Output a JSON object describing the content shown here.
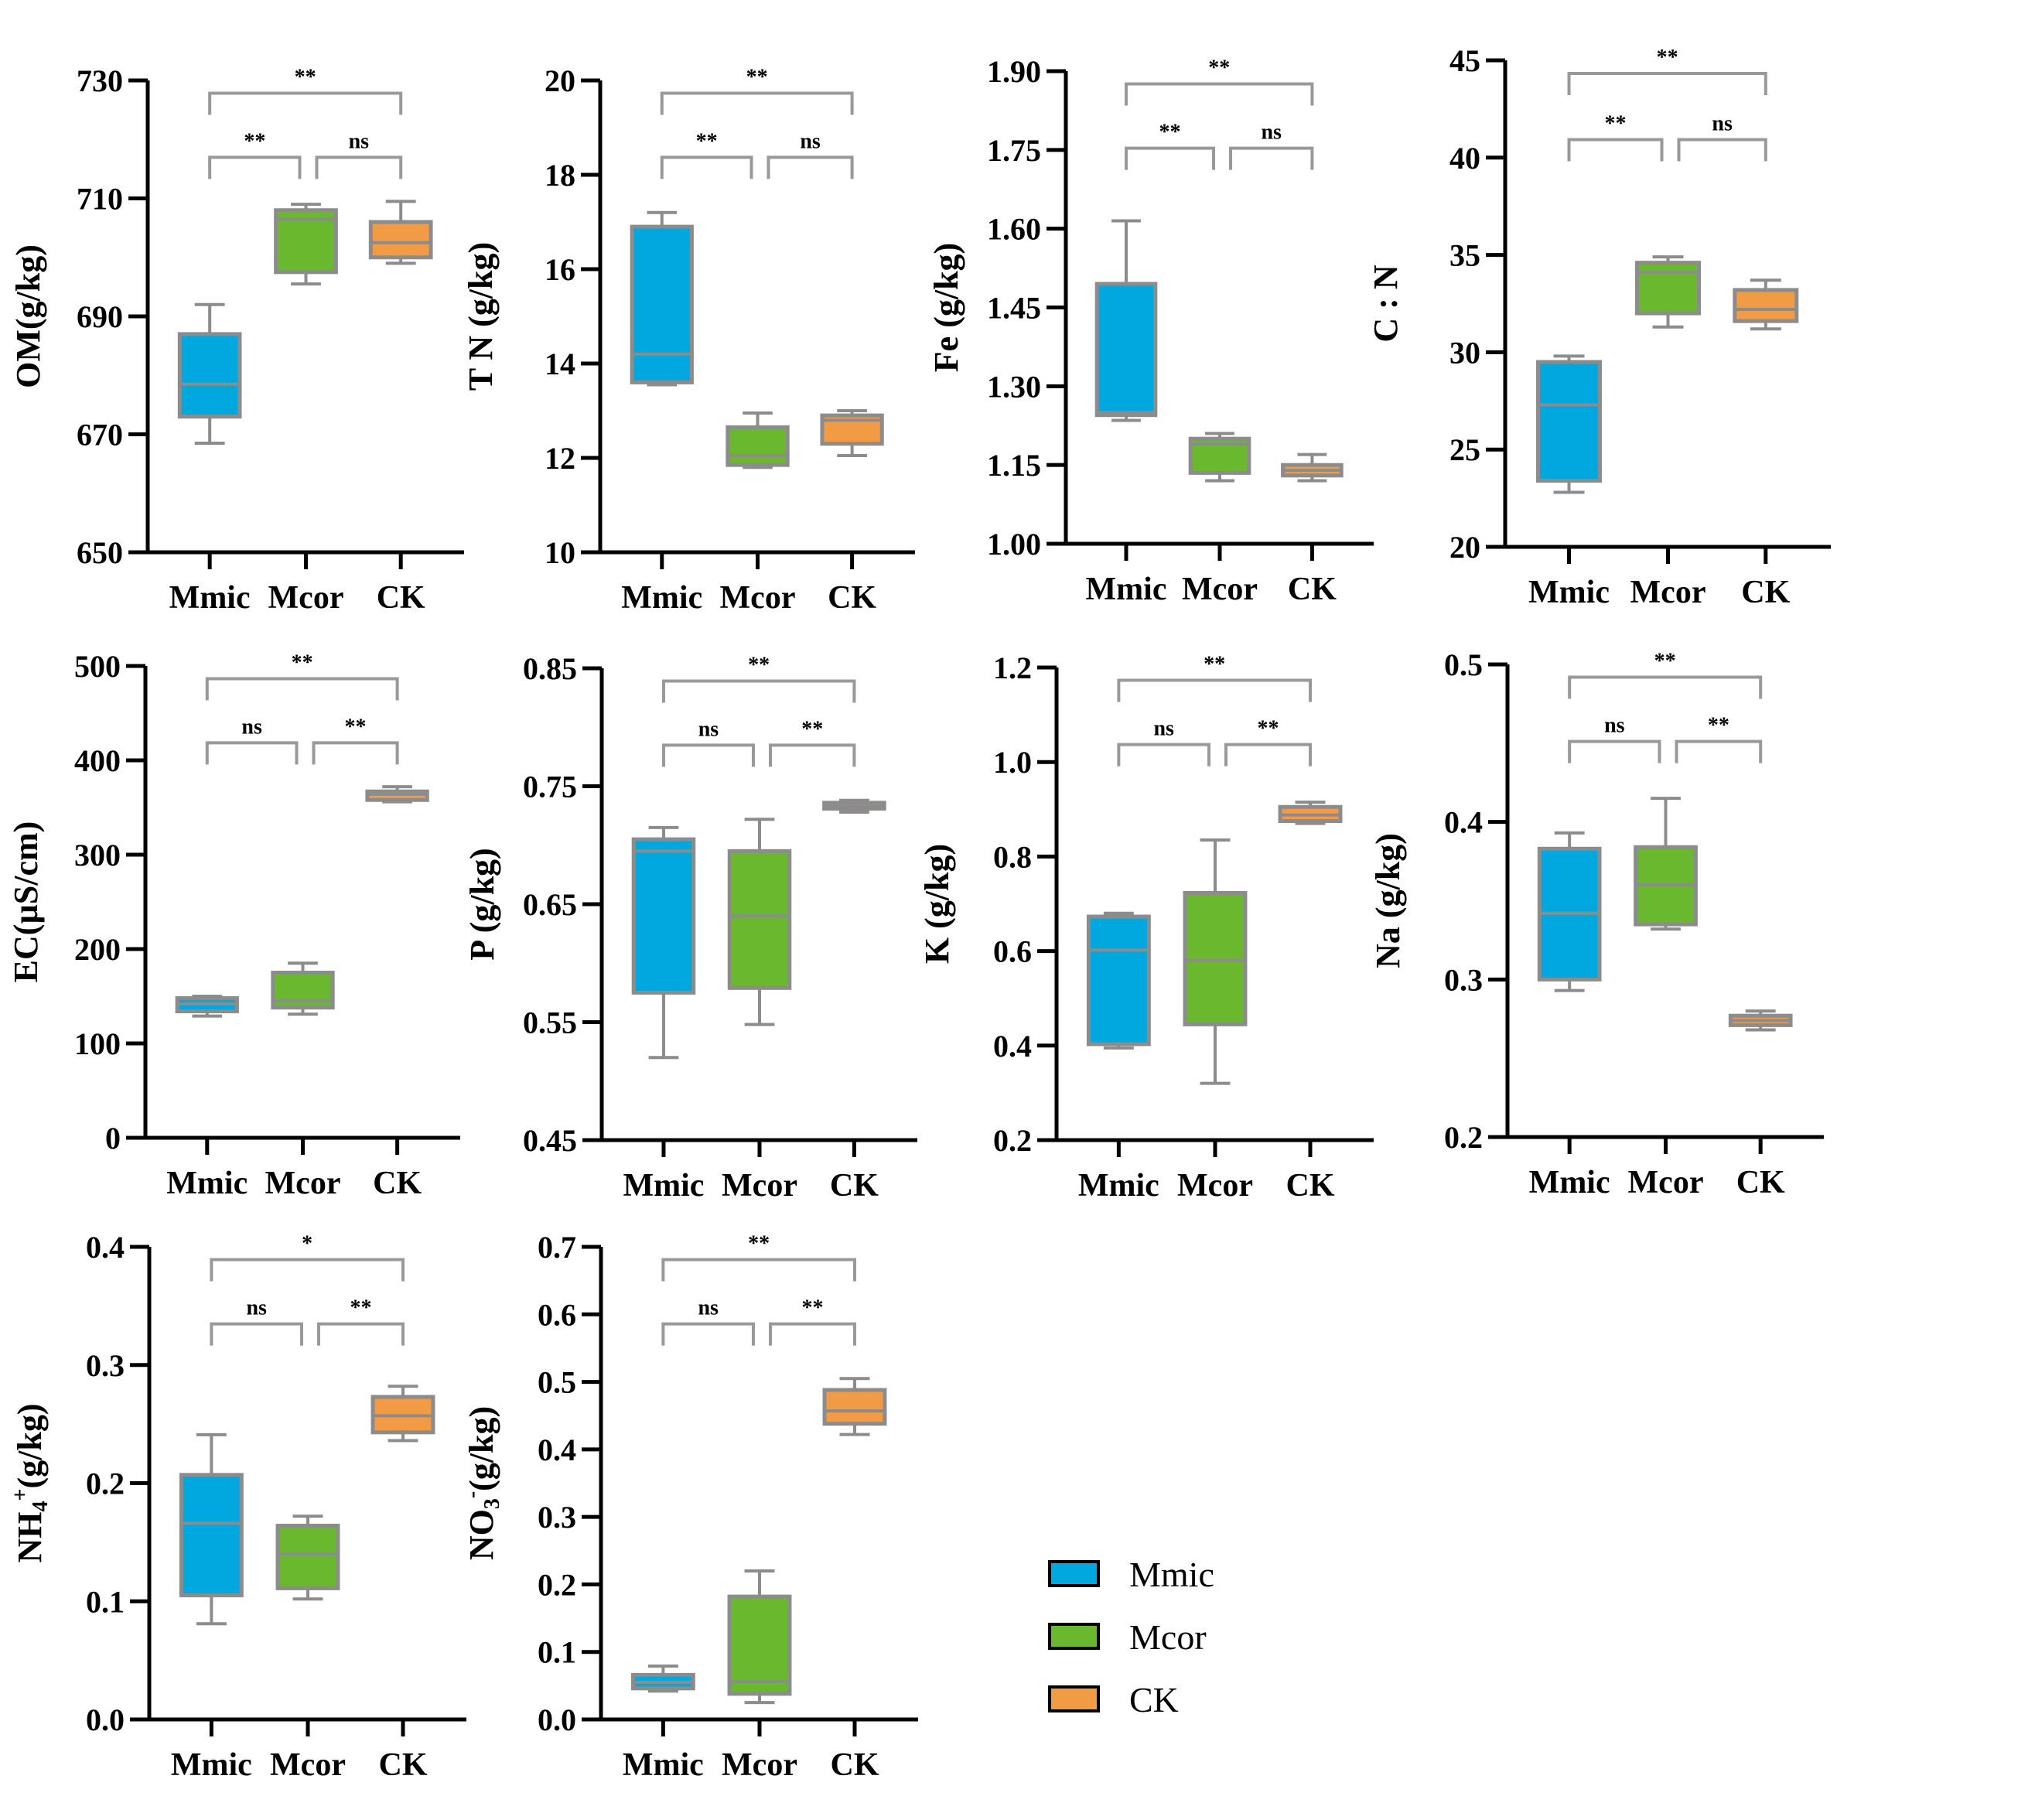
{
  "chart_data": {
    "type": "boxplot",
    "groups": [
      "Mmic",
      "Mcor",
      "CK"
    ],
    "group_colors": {
      "Mmic": "#00a8e0",
      "Mcor": "#6ab82e",
      "CK": "#f19b45"
    },
    "box_line_color": "#8c8c8c",
    "legend": {
      "placement": "bottom-right",
      "entries": [
        {
          "label": "Mmic",
          "color": "#00a8e0"
        },
        {
          "label": "Mcor",
          "color": "#6ab82e"
        },
        {
          "label": "CK",
          "color": "#f19b45"
        }
      ]
    },
    "panels": [
      {
        "id": "OM",
        "ylabel": "OM(g/kg)",
        "ylim": [
          650,
          730
        ],
        "ticks": [
          "650",
          "670",
          "690",
          "710",
          "730"
        ],
        "boxes": [
          {
            "group": "Mmic",
            "min": 668.5,
            "q1": 673,
            "median": 678.5,
            "q3": 687,
            "max": 692
          },
          {
            "group": "Mcor",
            "min": 695.5,
            "q1": 697.5,
            "median": 706.5,
            "q3": 708,
            "max": 709
          },
          {
            "group": "CK",
            "min": 699,
            "q1": 700,
            "median": 702.5,
            "q3": 706,
            "max": 709.5
          }
        ],
        "significance": [
          {
            "pair": [
              "Mmic",
              "CK"
            ],
            "label": "**",
            "level": 2
          },
          {
            "pair": [
              "Mmic",
              "Mcor"
            ],
            "label": "**",
            "level": 1
          },
          {
            "pair": [
              "Mcor",
              "CK"
            ],
            "label": "ns",
            "level": 1
          }
        ]
      },
      {
        "id": "TN",
        "ylabel": "T N (g/kg)",
        "ylim": [
          10,
          20
        ],
        "ticks": [
          "10",
          "12",
          "14",
          "16",
          "18",
          "20"
        ],
        "boxes": [
          {
            "group": "Mmic",
            "min": 13.55,
            "q1": 13.6,
            "median": 14.2,
            "q3": 16.9,
            "max": 17.2
          },
          {
            "group": "Mcor",
            "min": 11.8,
            "q1": 11.85,
            "median": 12.05,
            "q3": 12.65,
            "max": 12.95
          },
          {
            "group": "CK",
            "min": 12.05,
            "q1": 12.3,
            "median": 12.8,
            "q3": 12.9,
            "max": 13.0
          }
        ],
        "significance": [
          {
            "pair": [
              "Mmic",
              "CK"
            ],
            "label": "**",
            "level": 2
          },
          {
            "pair": [
              "Mmic",
              "Mcor"
            ],
            "label": "**",
            "level": 1
          },
          {
            "pair": [
              "Mcor",
              "CK"
            ],
            "label": "ns",
            "level": 1
          }
        ]
      },
      {
        "id": "Fe",
        "ylabel": "Fe (g/kg)",
        "ylim": [
          1.0,
          1.9
        ],
        "ticks": [
          "1.00",
          "1.15",
          "1.30",
          "1.45",
          "1.60",
          "1.75",
          "1.90"
        ],
        "boxes": [
          {
            "group": "Mmic",
            "min": 1.235,
            "q1": 1.245,
            "median": 1.25,
            "q3": 1.495,
            "max": 1.615
          },
          {
            "group": "Mcor",
            "min": 1.12,
            "q1": 1.135,
            "median": 1.19,
            "q3": 1.2,
            "max": 1.21
          },
          {
            "group": "CK",
            "min": 1.12,
            "q1": 1.13,
            "median": 1.14,
            "q3": 1.15,
            "max": 1.17
          }
        ],
        "significance": [
          {
            "pair": [
              "Mmic",
              "CK"
            ],
            "label": "**",
            "level": 2
          },
          {
            "pair": [
              "Mmic",
              "Mcor"
            ],
            "label": "**",
            "level": 1
          },
          {
            "pair": [
              "Mcor",
              "CK"
            ],
            "label": "ns",
            "level": 1
          }
        ]
      },
      {
        "id": "CN",
        "ylabel": "C : N",
        "ylim": [
          20,
          45
        ],
        "ticks": [
          "20",
          "25",
          "30",
          "35",
          "40",
          "45"
        ],
        "boxes": [
          {
            "group": "Mmic",
            "min": 22.8,
            "q1": 23.4,
            "median": 27.3,
            "q3": 29.5,
            "max": 29.8
          },
          {
            "group": "Mcor",
            "min": 31.3,
            "q1": 32.0,
            "median": 34.1,
            "q3": 34.6,
            "max": 34.9
          },
          {
            "group": "CK",
            "min": 31.2,
            "q1": 31.6,
            "median": 32.2,
            "q3": 33.2,
            "max": 33.7
          }
        ],
        "significance": [
          {
            "pair": [
              "Mmic",
              "CK"
            ],
            "label": "**",
            "level": 2
          },
          {
            "pair": [
              "Mmic",
              "Mcor"
            ],
            "label": "**",
            "level": 1
          },
          {
            "pair": [
              "Mcor",
              "CK"
            ],
            "label": "ns",
            "level": 1
          }
        ]
      },
      {
        "id": "EC",
        "ylabel": "EC(µS/cm)",
        "ylim": [
          0,
          500
        ],
        "ticks": [
          "0",
          "100",
          "200",
          "300",
          "400",
          "500"
        ],
        "boxes": [
          {
            "group": "Mmic",
            "min": 129,
            "q1": 134,
            "median": 142,
            "q3": 148,
            "max": 150
          },
          {
            "group": "Mcor",
            "min": 131,
            "q1": 138,
            "median": 145,
            "q3": 175,
            "max": 185
          },
          {
            "group": "CK",
            "min": 356,
            "q1": 358,
            "median": 364,
            "q3": 367,
            "max": 372
          }
        ],
        "significance": [
          {
            "pair": [
              "Mmic",
              "CK"
            ],
            "label": "**",
            "level": 2
          },
          {
            "pair": [
              "Mmic",
              "Mcor"
            ],
            "label": "ns",
            "level": 1
          },
          {
            "pair": [
              "Mcor",
              "CK"
            ],
            "label": "**",
            "level": 1
          }
        ]
      },
      {
        "id": "P",
        "ylabel": "P (g/kg)",
        "ylim": [
          0.45,
          0.85
        ],
        "ticks": [
          "0.45",
          "0.55",
          "0.65",
          "0.75",
          "0.85"
        ],
        "boxes": [
          {
            "group": "Mmic",
            "min": 0.52,
            "q1": 0.575,
            "median": 0.695,
            "q3": 0.705,
            "max": 0.715
          },
          {
            "group": "Mcor",
            "min": 0.548,
            "q1": 0.579,
            "median": 0.64,
            "q3": 0.695,
            "max": 0.722
          },
          {
            "group": "CK",
            "min": 0.728,
            "q1": 0.731,
            "median": 0.733,
            "q3": 0.736,
            "max": 0.738
          }
        ],
        "significance": [
          {
            "pair": [
              "Mmic",
              "CK"
            ],
            "label": "**",
            "level": 2
          },
          {
            "pair": [
              "Mmic",
              "Mcor"
            ],
            "label": "ns",
            "level": 1
          },
          {
            "pair": [
              "Mcor",
              "CK"
            ],
            "label": "**",
            "level": 1
          }
        ]
      },
      {
        "id": "K",
        "ylabel": "K (g/kg)",
        "ylim": [
          0.2,
          1.2
        ],
        "ticks": [
          "0.2",
          "0.4",
          "0.6",
          "0.8",
          "1.0",
          "1.2"
        ],
        "boxes": [
          {
            "group": "Mmic",
            "min": 0.395,
            "q1": 0.403,
            "median": 0.602,
            "q3": 0.673,
            "max": 0.68
          },
          {
            "group": "Mcor",
            "min": 0.32,
            "q1": 0.445,
            "median": 0.58,
            "q3": 0.723,
            "max": 0.835
          },
          {
            "group": "CK",
            "min": 0.87,
            "q1": 0.875,
            "median": 0.888,
            "q3": 0.905,
            "max": 0.915
          }
        ],
        "significance": [
          {
            "pair": [
              "Mmic",
              "CK"
            ],
            "label": "**",
            "level": 2
          },
          {
            "pair": [
              "Mmic",
              "Mcor"
            ],
            "label": "ns",
            "level": 1
          },
          {
            "pair": [
              "Mcor",
              "CK"
            ],
            "label": "**",
            "level": 1
          }
        ]
      },
      {
        "id": "Na",
        "ylabel": "Na (g/kg)",
        "ylim": [
          0.2,
          0.5
        ],
        "ticks": [
          "0.2",
          "0.3",
          "0.4",
          "0.5"
        ],
        "boxes": [
          {
            "group": "Mmic",
            "min": 0.293,
            "q1": 0.3,
            "median": 0.342,
            "q3": 0.383,
            "max": 0.393
          },
          {
            "group": "Mcor",
            "min": 0.332,
            "q1": 0.335,
            "median": 0.36,
            "q3": 0.384,
            "max": 0.415
          },
          {
            "group": "CK",
            "min": 0.268,
            "q1": 0.271,
            "median": 0.274,
            "q3": 0.277,
            "max": 0.28
          }
        ],
        "significance": [
          {
            "pair": [
              "Mmic",
              "CK"
            ],
            "label": "**",
            "level": 2
          },
          {
            "pair": [
              "Mmic",
              "Mcor"
            ],
            "label": "ns",
            "level": 1
          },
          {
            "pair": [
              "Mcor",
              "CK"
            ],
            "label": "**",
            "level": 1
          }
        ]
      },
      {
        "id": "NH4",
        "ylabel_main": "NH",
        "ylabel_sub": "4",
        "ylabel_sup": "+",
        "ylabel_tail": "(g/kg)",
        "ylim": [
          0.0,
          0.4
        ],
        "ticks": [
          "0.0",
          "0.1",
          "0.2",
          "0.3",
          "0.4"
        ],
        "boxes": [
          {
            "group": "Mmic",
            "min": 0.081,
            "q1": 0.105,
            "median": 0.166,
            "q3": 0.207,
            "max": 0.241
          },
          {
            "group": "Mcor",
            "min": 0.102,
            "q1": 0.111,
            "median": 0.14,
            "q3": 0.164,
            "max": 0.172
          },
          {
            "group": "CK",
            "min": 0.236,
            "q1": 0.243,
            "median": 0.257,
            "q3": 0.273,
            "max": 0.282
          }
        ],
        "significance": [
          {
            "pair": [
              "Mmic",
              "CK"
            ],
            "label": "*",
            "level": 2
          },
          {
            "pair": [
              "Mmic",
              "Mcor"
            ],
            "label": "ns",
            "level": 1
          },
          {
            "pair": [
              "Mcor",
              "CK"
            ],
            "label": "**",
            "level": 1
          }
        ]
      },
      {
        "id": "NO3",
        "ylabel_main": "NO",
        "ylabel_sub": "3",
        "ylabel_sup": "-",
        "ylabel_tail": "(g/kg)",
        "ylim": [
          0.0,
          0.7
        ],
        "ticks": [
          "0.0",
          "0.1",
          "0.2",
          "0.3",
          "0.4",
          "0.5",
          "0.6",
          "0.7"
        ],
        "boxes": [
          {
            "group": "Mmic",
            "min": 0.042,
            "q1": 0.046,
            "median": 0.055,
            "q3": 0.066,
            "max": 0.079
          },
          {
            "group": "Mcor",
            "min": 0.025,
            "q1": 0.038,
            "median": 0.056,
            "q3": 0.182,
            "max": 0.22
          },
          {
            "group": "CK",
            "min": 0.422,
            "q1": 0.438,
            "median": 0.457,
            "q3": 0.488,
            "max": 0.505
          }
        ],
        "significance": [
          {
            "pair": [
              "Mmic",
              "CK"
            ],
            "label": "**",
            "level": 2
          },
          {
            "pair": [
              "Mmic",
              "Mcor"
            ],
            "label": "ns",
            "level": 1
          },
          {
            "pair": [
              "Mcor",
              "CK"
            ],
            "label": "**",
            "level": 1
          }
        ]
      }
    ]
  }
}
